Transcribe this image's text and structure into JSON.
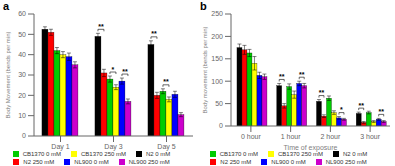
{
  "chart_data": [
    {
      "type": "bar",
      "title": "a",
      "ylabel": "Body Movement (bends per min)",
      "categories": [
        "Day 1",
        "Day 3",
        "Day 5"
      ],
      "ylim": [
        0,
        60
      ],
      "yticks": [
        0,
        10,
        20,
        30,
        40,
        50,
        60
      ],
      "grid": false,
      "legend": "bottom",
      "series": [
        {
          "name": "N2 0 mM",
          "color": "#000000",
          "values": [
            52.5,
            49.0,
            45.0
          ],
          "errors": [
            1.2,
            1.5,
            1.8
          ]
        },
        {
          "name": "N2 250 mM",
          "color": "#ff0000",
          "values": [
            51.0,
            31.0,
            20.0
          ],
          "errors": [
            1.5,
            1.8,
            1.5
          ]
        },
        {
          "name": "CB1370 0 mM",
          "color": "#00cc00",
          "values": [
            42.0,
            28.0,
            22.0
          ],
          "errors": [
            1.5,
            1.5,
            1.2
          ]
        },
        {
          "name": "CB1370 250 mM",
          "color": "#ffff00",
          "values": [
            40.0,
            24.0,
            18.0
          ],
          "errors": [
            1.5,
            1.2,
            1.2
          ]
        },
        {
          "name": "NL900 0 mM",
          "color": "#0000ff",
          "values": [
            39.0,
            27.0,
            20.5
          ],
          "errors": [
            1.8,
            1.5,
            1.5
          ]
        },
        {
          "name": "NL900 250 mM",
          "color": "#cc00cc",
          "values": [
            35.0,
            17.0,
            10.5
          ],
          "errors": [
            1.5,
            1.2,
            1.0
          ]
        }
      ],
      "annotations": [
        {
          "category": "Day 3",
          "series": [
            "N2 0 mM",
            "N2 250 mM"
          ],
          "text": "**"
        },
        {
          "category": "Day 3",
          "series": [
            "CB1370 0 mM",
            "CB1370 250 mM"
          ],
          "text": "*"
        },
        {
          "category": "Day 3",
          "series": [
            "NL900 0 mM",
            "NL900 250 mM"
          ],
          "text": "**"
        },
        {
          "category": "Day 5",
          "series": [
            "N2 0 mM",
            "N2 250 mM"
          ],
          "text": "**"
        },
        {
          "category": "Day 5",
          "series": [
            "CB1370 0 mM",
            "CB1370 250 mM"
          ],
          "text": "**"
        }
      ]
    },
    {
      "type": "bar",
      "title": "b",
      "xlabel": "Time of exposure",
      "ylabel": "Body movement (bends per min)",
      "categories": [
        "0 hour",
        "1 hour",
        "2 hour",
        "3 hour"
      ],
      "ylim": [
        0,
        250
      ],
      "yticks": [
        0,
        50,
        100,
        150,
        200,
        250
      ],
      "grid": false,
      "legend": "bottom",
      "series": [
        {
          "name": "N2 0 mM",
          "color": "#000000",
          "values": [
            175,
            90,
            55,
            28
          ],
          "errors": [
            8,
            5,
            4,
            3
          ]
        },
        {
          "name": "N2 250 mM",
          "color": "#ff0000",
          "values": [
            170,
            45,
            22,
            8
          ],
          "errors": [
            10,
            5,
            3,
            2
          ]
        },
        {
          "name": "CB1370 0 mM",
          "color": "#00cc00",
          "values": [
            163,
            88,
            62,
            30
          ],
          "errors": [
            8,
            6,
            5,
            3
          ]
        },
        {
          "name": "CB1370 250 mM",
          "color": "#ffff00",
          "values": [
            140,
            70,
            30,
            10
          ],
          "errors": [
            15,
            8,
            4,
            2
          ]
        },
        {
          "name": "NL900 0 mM",
          "color": "#0000ff",
          "values": [
            113,
            95,
            18,
            15
          ],
          "errors": [
            7,
            5,
            3,
            2
          ]
        },
        {
          "name": "NL900 250 mM",
          "color": "#cc00cc",
          "values": [
            110,
            90,
            15,
            10
          ],
          "errors": [
            6,
            5,
            2,
            2
          ]
        }
      ],
      "annotations": [
        {
          "category": "1 hour",
          "series": [
            "N2 0 mM",
            "N2 250 mM"
          ],
          "text": "**"
        },
        {
          "category": "1 hour",
          "series": [
            "NL900 0 mM",
            "NL900 250 mM"
          ],
          "text": "**"
        },
        {
          "category": "2 hour",
          "series": [
            "N2 0 mM",
            "N2 250 mM"
          ],
          "text": "**"
        },
        {
          "category": "2 hour",
          "series": [
            "NL900 0 mM",
            "NL900 250 mM"
          ],
          "text": "*"
        },
        {
          "category": "3 hour",
          "series": [
            "N2 0 mM",
            "N2 250 mM"
          ],
          "text": "**"
        },
        {
          "category": "3 hour",
          "series": [
            "NL900 0 mM",
            "NL900 250 mM"
          ],
          "text": "**"
        }
      ]
    }
  ]
}
